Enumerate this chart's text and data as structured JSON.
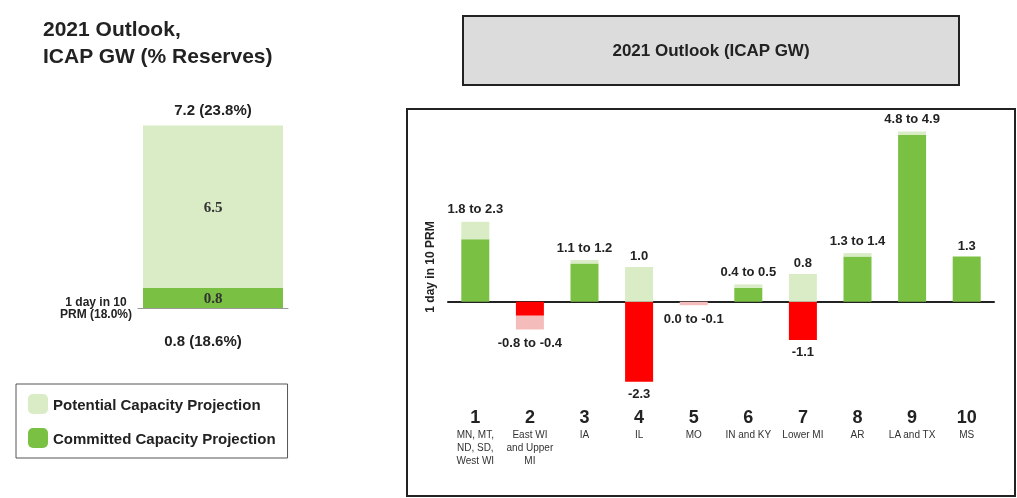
{
  "chart_data": [
    {
      "type": "bar",
      "title": "2021 Outlook,\nICAP GW (% Reserves)",
      "categories": [
        null
      ],
      "stacked": true,
      "data_labels": true,
      "totals": [
        "7.2 (23.8%)"
      ],
      "legend": "bottom",
      "series": [
        {
          "name": "Committed Capacity Projection",
          "color": "#7ac143",
          "values": [
            0.8
          ]
        },
        {
          "name": "Potential Capacity Projection",
          "color": "#d9ecc6",
          "values": [
            6.5
          ]
        }
      ],
      "ref_lines": [
        {
          "axis": "y",
          "value": 0,
          "label": "1 day in 10\nPRM (18.0%)"
        }
      ],
      "annotations": [
        "0.8 (18.6%)"
      ]
    },
    {
      "type": "bar",
      "title": "2021 Outlook (ICAP GW)",
      "ylabel": "1 day in 10 PRM",
      "stacked": true,
      "legend": false,
      "categories": [
        "1\nMN, MT, ND, SD, West WI",
        "2\nEast WI and Upper MI",
        "3\nIA",
        "4\nIL",
        "5\nMO",
        "6\nIN and KY",
        "7\nLower MI",
        "8\nAR",
        "9\nLA and TX",
        "10\nMS"
      ],
      "series": [
        {
          "colors": [
            "#7ac143",
            "#ff0000",
            "#7ac143",
            "#ff0000",
            "#ff0000",
            "#7ac143",
            "#ff0000",
            "#7ac143",
            "#7ac143",
            "#7ac143"
          ],
          "values": [
            1.8,
            -0.4,
            1.1,
            -2.3,
            0.0,
            0.4,
            -1.1,
            1.3,
            4.8,
            1.3
          ],
          "value_labels": [
            null,
            null,
            null,
            "-2.3",
            null,
            null,
            "-1.1",
            null,
            null,
            "1.3"
          ]
        },
        {
          "colors": [
            "#d9ecc6",
            "#f5bcbc",
            "#d9ecc6",
            "#d9ecc6",
            "#f5bcbc",
            "#d9ecc6",
            "#d9ecc6",
            "#d9ecc6",
            "#d9ecc6",
            null
          ],
          "values": [
            0.5,
            -0.4,
            0.1,
            1.0,
            -0.1,
            0.1,
            0.8,
            0.1,
            0.1,
            null
          ],
          "value_labels": [
            null,
            null,
            null,
            "1.0",
            null,
            null,
            "0.8",
            null,
            null,
            null
          ]
        }
      ],
      "annotations": [
        {
          "text": "1.8 to 2.3",
          "x": "1\nMN, MT, ND, SD, West WI",
          "y": 2.3
        },
        {
          "text": "-0.8 to -0.4",
          "x": "2\nEast WI and Upper MI",
          "y": -0.8
        },
        {
          "text": "1.1 to 1.2",
          "x": "3\nIA",
          "y": 1.2
        },
        {
          "text": "0.0 to -0.1",
          "x": "5\nMO",
          "y": -0.1
        },
        {
          "text": "0.4 to 0.5",
          "x": "6\nIN and KY",
          "y": 0.5
        },
        {
          "text": "1.3 to 1.4",
          "x": "8\nAR",
          "y": 1.4
        },
        {
          "text": "4.8 to 4.9",
          "x": "9\nLA and TX",
          "y": 4.9
        }
      ]
    }
  ]
}
